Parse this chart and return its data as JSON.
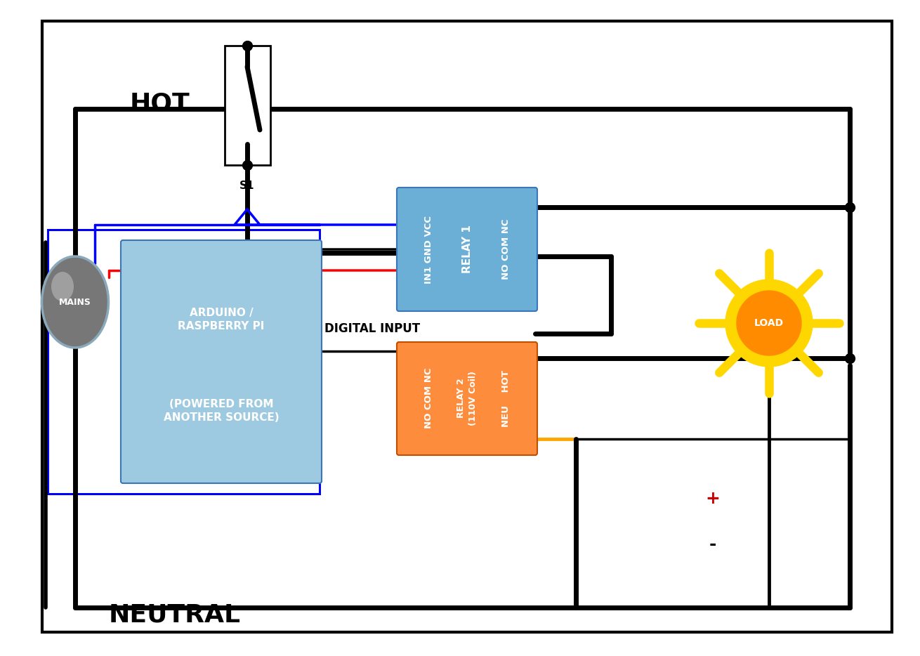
{
  "bg_color": "#ffffff",
  "relay1_color": "#6baed6",
  "relay2_color": "#fd8d3c",
  "arduino_color": "#9ecae1",
  "sun_outer": "#ffd700",
  "sun_inner": "#ff8c00",
  "wire_black": "#000000",
  "wire_blue": "#0000ff",
  "wire_red": "#ff0000",
  "wire_orange": "#ffa500",
  "label_hot": "HOT",
  "label_neutral": "NEUTRAL",
  "label_mains": "MAINS",
  "label_s1": "S1",
  "label_load": "LOAD",
  "label_digital_input": "DIGITAL INPUT",
  "label_plus": "+",
  "label_minus": "-",
  "relay1_left_text": "IN1 GND VCC",
  "relay1_center_text": "RELAY 1",
  "relay1_right_text": "NO COM NC",
  "relay2_left_text": "NO COM NC",
  "relay2_center_text": "RELAY 2\n(110V Coil)",
  "relay2_right_text": "NEU    HOT",
  "arduino_line1": "ARDUINO /",
  "arduino_line2": "RASPBERRY PI",
  "arduino_line3": "(POWERED FROM",
  "arduino_line4": "ANOTHER SOURCE)"
}
